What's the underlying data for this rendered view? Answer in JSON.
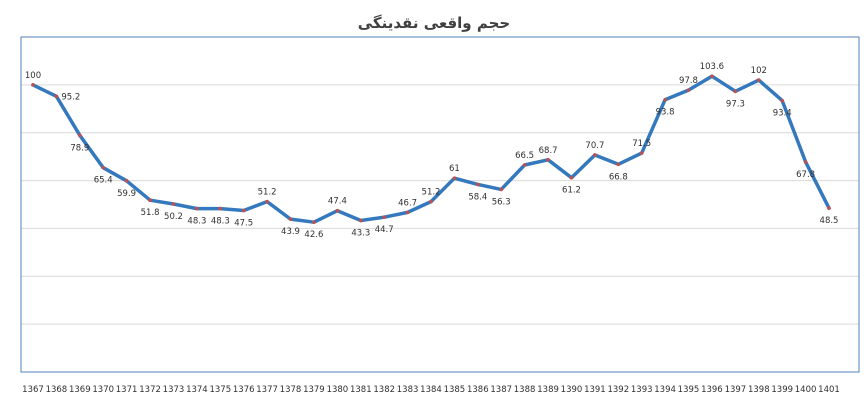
{
  "chart_data": {
    "type": "line",
    "title": "حجم واقعی نقدینگی",
    "x": [
      "1367",
      "1368",
      "1369",
      "1370",
      "1371",
      "1372",
      "1373",
      "1374",
      "1375",
      "1376",
      "1377",
      "1378",
      "1379",
      "1380",
      "1381",
      "1382",
      "1383",
      "1384",
      "1385",
      "1386",
      "1387",
      "1388",
      "1389",
      "1390",
      "1391",
      "1392",
      "1393",
      "1394",
      "1395",
      "1396",
      "1397",
      "1398",
      "1399",
      "1400",
      "1401"
    ],
    "series": [
      {
        "values": [
          100,
          95.2,
          78.9,
          65.4,
          59.9,
          51.8,
          50.2,
          48.3,
          48.3,
          47.5,
          51.2,
          43.9,
          42.6,
          47.4,
          43.3,
          44.7,
          46.7,
          51.2,
          61,
          58.4,
          56.3,
          66.5,
          68.7,
          61.2,
          70.7,
          66.8,
          71.5,
          93.8,
          97.8,
          103.6,
          97.3,
          102,
          93.4,
          67.8,
          48.5
        ],
        "labels": [
          "100",
          "95.2",
          "78.9",
          "65.4",
          "59.9",
          "51.8",
          "50.2",
          "48.3",
          "48.3",
          "47.5",
          "51.2",
          "43.9",
          "42.6",
          "47.4",
          "43.3",
          "44.7",
          "46.7",
          "51.2",
          "61",
          "58.4",
          "56.3",
          "66.5",
          "68.7",
          "61.2",
          "70.7",
          "66.8",
          "71.5",
          "93.8",
          "97.8",
          "103.6",
          "97.3",
          "102",
          "93.4",
          "67.8",
          "48.5"
        ],
        "label_pos": [
          "above",
          "right",
          "below",
          "below",
          "below",
          "below",
          "below",
          "below",
          "below",
          "below",
          "above",
          "below",
          "below",
          "above",
          "below",
          "below",
          "above",
          "above",
          "above",
          "below",
          "below",
          "above",
          "above",
          "below",
          "above",
          "below",
          "above",
          "below",
          "above",
          "above",
          "below",
          "above",
          "below",
          "below",
          "below"
        ]
      }
    ],
    "ylim": [
      -20,
      120
    ],
    "gridlines": [
      0,
      20,
      40,
      60,
      80,
      100
    ],
    "grid": true,
    "legend": false,
    "colors": {
      "line": "#3478bd",
      "marker": "#c0504d",
      "grid": "#d9d9d9",
      "frame": "#4f81bd"
    }
  }
}
